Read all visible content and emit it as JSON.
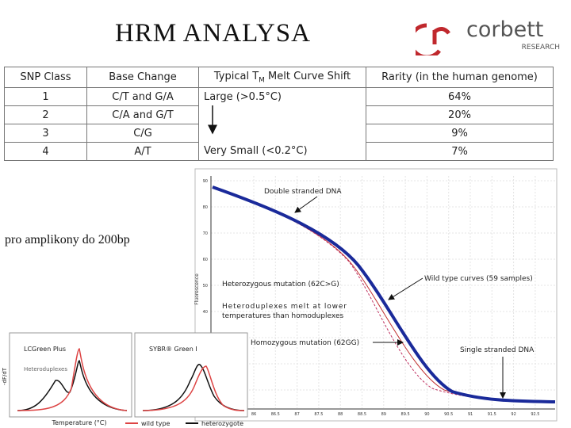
{
  "title": "HRM ANALYSA",
  "logo": {
    "name": "corbett",
    "subtitle": "RESEARCH"
  },
  "table": {
    "header": [
      "SNP Class",
      "Base Change",
      {
        "pre": "Typical T",
        "sub": "M",
        "post": " Melt Curve Shift"
      },
      "Rarity (in the human genome)"
    ],
    "rows": [
      {
        "snp_class": "1",
        "base_change": "C/T and G/A",
        "shift": "Large (>0.5°C)",
        "rarity": "64%"
      },
      {
        "snp_class": "2",
        "base_change": "C/A and G/T",
        "rarity": "20%"
      },
      {
        "snp_class": "3",
        "base_change": "C/G",
        "rarity": "9%"
      },
      {
        "snp_class": "4",
        "base_change": "A/T",
        "shift": "Very Small (<0.2°C)",
        "rarity": "7%"
      }
    ]
  },
  "note": "pro amplikony do 200bp",
  "melt_chart": {
    "y_axis_label": "Fluorescence",
    "y_tick_labels": [
      "90",
      "80",
      "70",
      "60",
      "50",
      "40",
      "30",
      "20",
      "10"
    ],
    "x_tick_labels": [
      "86",
      "86.5",
      "87",
      "87.5",
      "88",
      "88.5",
      "89",
      "89.5",
      "90",
      "90.5",
      "91",
      "91.5",
      "92",
      "92.5"
    ],
    "annotations": {
      "double": "Double stranded DNA",
      "hetero": "Heterozygous mutation (62C>G)",
      "heteroduplex_1": "Heteroduplexes melt at lower",
      "heteroduplex_2": "temperatures than homoduplexes",
      "homo": "Homozygous mutation (62GG)",
      "wild": "Wild type curves (59 samples)",
      "single": "Single stranded DNA"
    }
  },
  "small_charts": {
    "left_title": "LCGreen Plus",
    "left_annotation": "Heteroduplexes",
    "right_title": "SYBR® Green I",
    "y_axis_label": "-dF/dT",
    "x_axis_label": "Temperature (°C)",
    "legend": [
      "wild type",
      "heterozygote"
    ]
  }
}
